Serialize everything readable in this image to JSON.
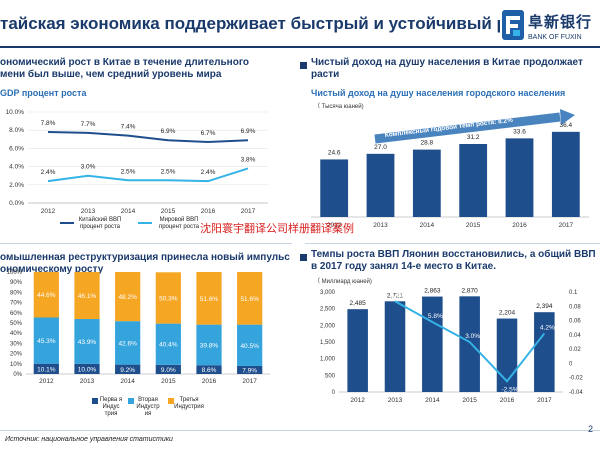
{
  "header": {
    "title": "тайская экономика поддерживает быстрый и устойчивый рост",
    "logo_cn": "阜新银行",
    "logo_en": "BANK OF FUXIN"
  },
  "panel1": {
    "title_line1": "ономический рост в Китае в течение длительного",
    "title_line2": "мени был выше, чем средний уровень мира",
    "subtitle": "GDP процент роста",
    "legend": {
      "china": "Китайский ВВП процент роста",
      "world": "Мировой ВВП процент роста"
    }
  },
  "panel2": {
    "title_line1": "Чистый доход на душу населения в Китае продолжает",
    "title_line2": "расти",
    "subtitle": "Чистый доход на душу населения городского населения",
    "unit": "（ Тысяча   юаней)",
    "annotation": "Комплексный годовой темп роста: 8.2%"
  },
  "panel3": {
    "title_line1": "омышленная реструктуризация принесла новый импульс",
    "title_line2": "ономическому росту",
    "legend": {
      "primary": "Перва я Индус трия",
      "secondary": "Вторая Индустр ия",
      "tertiary": "Третья Индустрия"
    }
  },
  "panel4": {
    "title_line1": "Темпы роста ВВП Ляонин восстановились, а общий ВВП",
    "title_line2": "в 2017 году занял 14-е место в Китае.",
    "unit": "（ Миллиард    юаней)"
  },
  "watermark": "沈阳寰宇翻译公司样册翻译案例",
  "source": "Источник: национальное управления статистики",
  "page_number": "2",
  "colors": {
    "navy": "#1a3a6b",
    "line_china": "#1f4e8c",
    "line_world": "#35b3e6",
    "bar_blue": "#1f4e8c",
    "stack_primary": "#1f4e8c",
    "stack_secondary": "#35a3dc",
    "stack_tertiary": "#f5a623"
  },
  "chart_data": [
    {
      "type": "line",
      "x": [
        "2012",
        "2013",
        "2014",
        "2015",
        "2016",
        "2017"
      ],
      "series": [
        {
          "name": "Китайский ВВП процент роста",
          "values": [
            7.8,
            7.7,
            7.4,
            6.9,
            6.7,
            6.9
          ],
          "labels": [
            "7.8%",
            "7.7%",
            "7.4%",
            "6.9%",
            "6.7%",
            "6.9%"
          ]
        },
        {
          "name": "Мировой ВВП процент роста",
          "values": [
            2.4,
            3.0,
            2.5,
            2.5,
            2.4,
            3.8
          ],
          "labels": [
            "2.4%",
            "3.0%",
            "2.5%",
            "2.5%",
            "2.4%",
            "3.8%"
          ]
        }
      ],
      "ylim": [
        0,
        10
      ],
      "yticks": [
        "0.0%",
        "2.0%",
        "4.0%",
        "6.0%",
        "8.0%",
        "10.0%"
      ],
      "grid": true
    },
    {
      "type": "bar",
      "categories": [
        "2012",
        "2013",
        "2014",
        "2015",
        "2016",
        "2017"
      ],
      "values": [
        24.6,
        27.0,
        28.8,
        31.2,
        33.6,
        36.4
      ],
      "labels": [
        "24.6",
        "27.0",
        "28.8",
        "31.2",
        "33.6",
        "36.4"
      ],
      "ylim": [
        0,
        40
      ],
      "yticks": [
        "0",
        "10",
        "20",
        "30",
        "40"
      ]
    },
    {
      "type": "bar",
      "stacked": true,
      "categories": [
        "2012",
        "2013",
        "2014",
        "2015",
        "2016",
        "2017"
      ],
      "series": [
        {
          "name": "Перва я Индус трия",
          "values": [
            10.1,
            10.0,
            9.2,
            9.0,
            8.6,
            7.9
          ],
          "labels": [
            "10.1%",
            "10.0%",
            "9.2%",
            "9.0%",
            "8.6%",
            "7.9%"
          ]
        },
        {
          "name": "Вторая Индустр ия",
          "values": [
            45.3,
            43.9,
            42.6,
            40.4,
            39.8,
            40.5
          ],
          "labels": [
            "45.3%",
            "43.9%",
            "42.6%",
            "40.4%",
            "39.8%",
            "40.5%"
          ]
        },
        {
          "name": "Третья Индустрия",
          "values": [
            44.6,
            46.1,
            48.2,
            50.3,
            51.6,
            51.6
          ],
          "labels": [
            "44.6%",
            "46.1%",
            "48.2%",
            "50.3%",
            "51.6%",
            "51.6%"
          ]
        }
      ],
      "ylim": [
        0,
        100
      ],
      "yticks": [
        "0%",
        "10%",
        "20%",
        "30%",
        "40%",
        "50%",
        "60%",
        "70%",
        "80%",
        "90%",
        "100%"
      ]
    },
    {
      "type": "bar",
      "categories": [
        "2012",
        "2013",
        "2014",
        "2015",
        "2016",
        "2017"
      ],
      "values": [
        2485,
        2721,
        2863,
        2870,
        2204,
        2394
      ],
      "labels": [
        "2,485",
        "2,721",
        "2,863",
        "2,870",
        "2,204",
        "2,394"
      ],
      "ylim": [
        0,
        3000
      ],
      "yticks": [
        "0",
        "500",
        "1,000",
        "1,500",
        "2,000",
        "2,500",
        "3,000"
      ],
      "line_series": {
        "values": [
          0.087,
          0.058,
          0.03,
          -0.025,
          0.042
        ],
        "x": [
          "2013",
          "2014",
          "2015",
          "2016",
          "2017"
        ],
        "labels": [
          "8.7%",
          "5.8%",
          "3.0%",
          "-2.5%",
          "4.2%"
        ],
        "ylim": [
          -0.04,
          0.1
        ],
        "yticks": [
          "-0.04",
          "-0.02",
          "0",
          "0.02",
          "0.04",
          "0.06",
          "0.08",
          "0.1"
        ]
      }
    }
  ]
}
